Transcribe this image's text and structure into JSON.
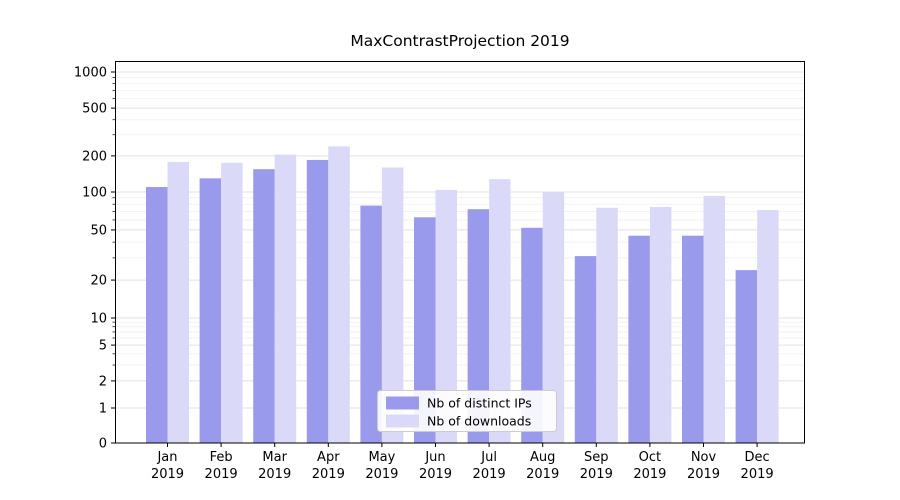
{
  "chart_data": {
    "type": "bar",
    "title": "MaxContrastProjection 2019",
    "yscale": "symlog",
    "ylim": [
      0,
      1000
    ],
    "grid": true,
    "legend_position": "lower center",
    "y_ticks": [
      1000,
      500,
      200,
      100,
      50,
      20,
      10,
      5,
      2,
      1,
      0
    ],
    "y_minor_ticks": [
      3,
      4,
      6,
      7,
      8,
      9,
      30,
      40,
      60,
      70,
      80,
      90,
      300,
      400,
      600,
      700,
      800,
      900
    ],
    "categories": [
      "Jan\n2019",
      "Feb\n2019",
      "Mar\n2019",
      "Apr\n2019",
      "May\n2019",
      "Jun\n2019",
      "Jul\n2019",
      "Aug\n2019",
      "Sep\n2019",
      "Oct\n2019",
      "Nov\n2019",
      "Dec\n2019"
    ],
    "series": [
      {
        "name": "Nb of distinct IPs",
        "color": "#9a9aec",
        "values": [
          110,
          130,
          155,
          185,
          78,
          63,
          73,
          52,
          31,
          45,
          45,
          24
        ]
      },
      {
        "name": "Nb of downloads",
        "color": "#dadaf8",
        "values": [
          178,
          175,
          205,
          240,
          160,
          104,
          128,
          100,
          75,
          76,
          93,
          72
        ]
      }
    ]
  }
}
